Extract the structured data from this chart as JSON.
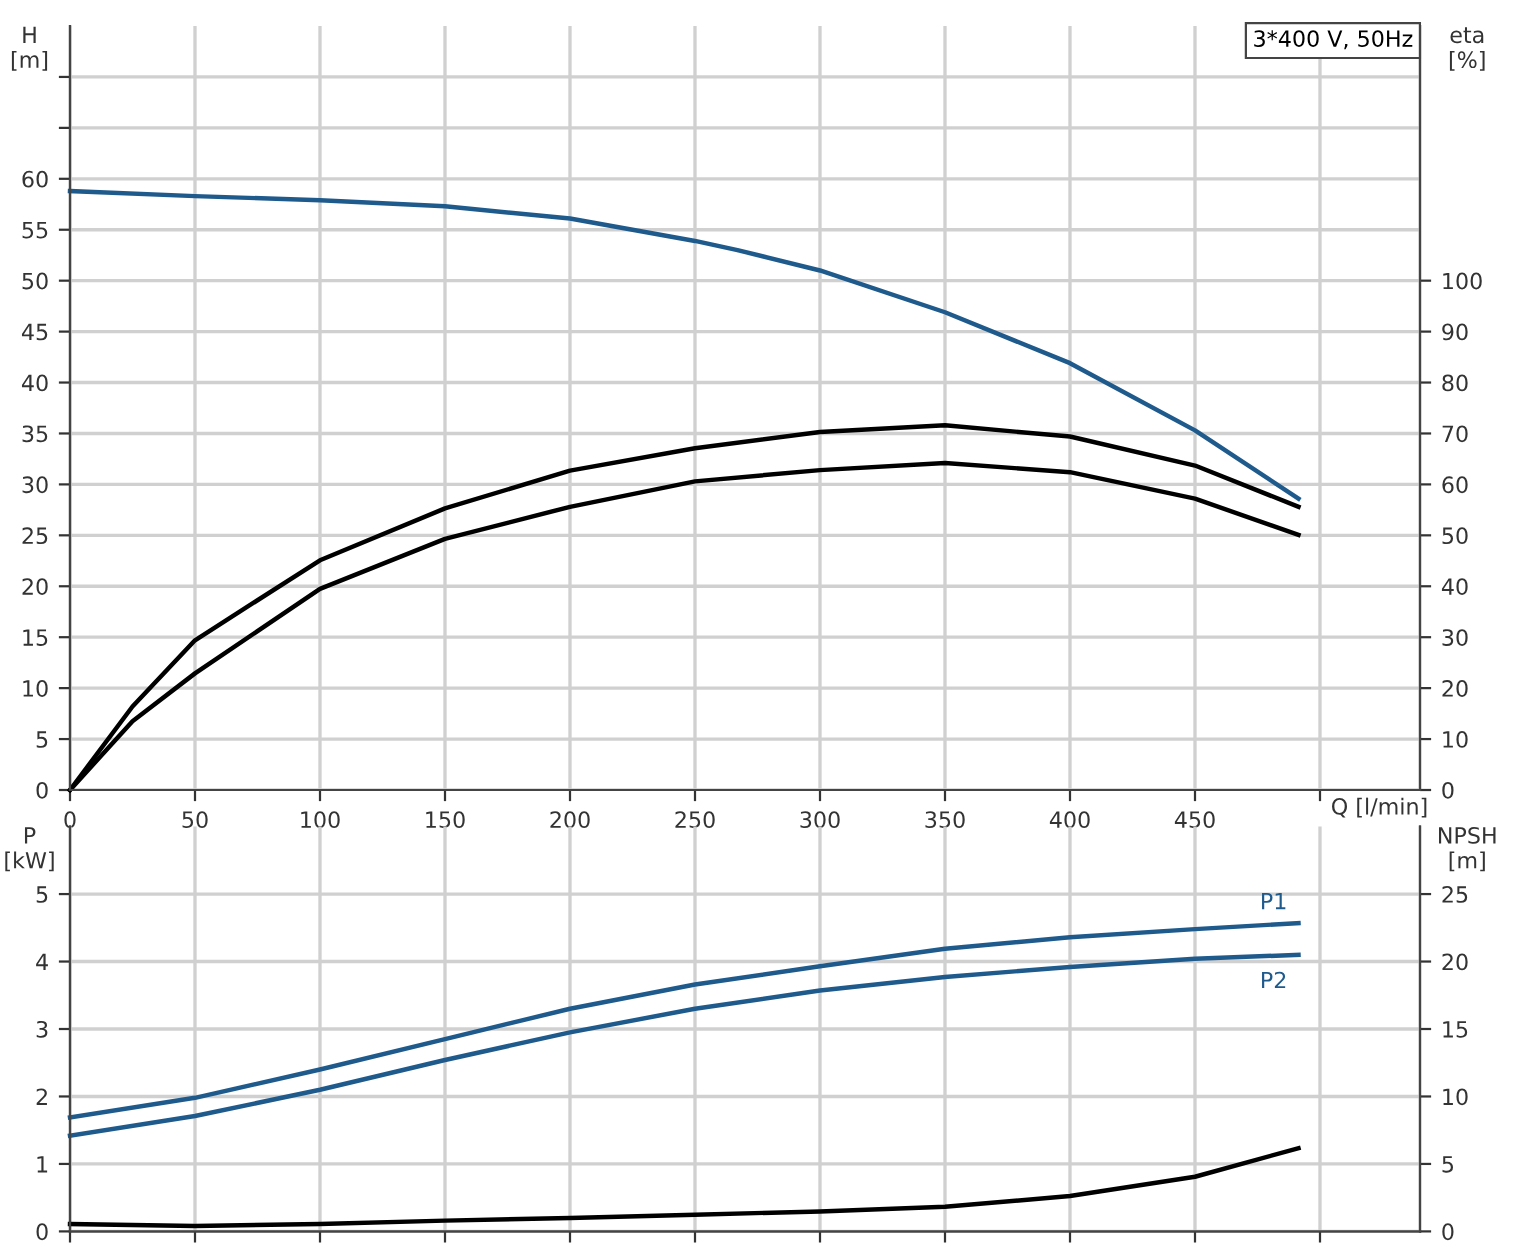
{
  "chart_data": [
    {
      "type": "line",
      "xlabel": "Q [l/min]",
      "ylabel": "H\n[m]",
      "y2label": "eta\n[%]",
      "annotations": [
        "3*400 V, 50Hz"
      ],
      "xlim": [
        0,
        540
      ],
      "xticks": [
        0,
        50,
        100,
        150,
        200,
        250,
        300,
        350,
        400,
        450,
        {
          "value": 500,
          "label": null
        }
      ],
      "ylim": [
        0,
        75
      ],
      "yticks": [
        0,
        5,
        10,
        15,
        20,
        25,
        30,
        35,
        40,
        45,
        50,
        55,
        60,
        {
          "value": 65,
          "label": null
        },
        {
          "value": 70,
          "label": null
        }
      ],
      "y2lim": [
        0,
        150
      ],
      "y2ticks": [
        0,
        10,
        20,
        30,
        40,
        50,
        60,
        70,
        80,
        90,
        100
      ],
      "grid": true,
      "legend": false,
      "marker": "none",
      "line_style": "solid",
      "series": [
        {
          "color": "#1f5a8c",
          "axis": "y",
          "x": [
            0,
            50,
            100,
            150,
            200,
            250,
            267,
            300,
            350,
            400,
            450,
            491.4
          ],
          "values": [
            58.8,
            58.3,
            57.9,
            57.3,
            56.1,
            53.9,
            53.0,
            51.0,
            46.9,
            41.9,
            35.3,
            28.6
          ]
        },
        {
          "color": "#000000",
          "axis": "y2",
          "x": [
            0,
            25,
            50,
            100,
            150,
            200,
            250,
            300,
            350,
            400,
            450,
            491.4
          ],
          "values": [
            0,
            16.4,
            29.4,
            45.1,
            55.3,
            62.7,
            67.1,
            70.3,
            71.6,
            69.4,
            63.7,
            55.6
          ]
        },
        {
          "color": "#000000",
          "axis": "y2",
          "x": [
            0,
            25,
            50,
            100,
            150,
            200,
            250,
            300,
            350,
            400,
            450,
            491.4
          ],
          "values": [
            0,
            13.5,
            22.9,
            39.5,
            49.3,
            55.6,
            60.6,
            62.8,
            64.2,
            62.4,
            57.2,
            50.1
          ]
        }
      ]
    },
    {
      "type": "line",
      "ylabel": "P\n[kW]",
      "y2label": "NPSH\n[m]",
      "tick_labels": "y",
      "xlim": [
        0,
        540
      ],
      "xticks": [
        0,
        50,
        100,
        150,
        200,
        250,
        300,
        350,
        400,
        450,
        500
      ],
      "ylim": [
        0,
        6
      ],
      "yticks": [
        0,
        1,
        2,
        3,
        4,
        5
      ],
      "y2lim": [
        0,
        30
      ],
      "y2ticks": [
        0,
        5,
        10,
        15,
        20,
        25
      ],
      "grid": true,
      "legend": false,
      "marker": "none",
      "line_style": "solid",
      "series": [
        {
          "name": "P1",
          "color": "#1f5a8c",
          "axis": "y",
          "x": [
            0,
            50,
            100,
            150,
            200,
            250,
            300,
            350,
            400,
            450,
            491.4
          ],
          "values": [
            1.69,
            1.98,
            2.4,
            2.85,
            3.3,
            3.66,
            3.93,
            4.19,
            4.36,
            4.48,
            4.57
          ]
        },
        {
          "name": "P2",
          "color": "#1f5a8c",
          "axis": "y",
          "x": [
            0,
            50,
            100,
            150,
            200,
            250,
            300,
            350,
            400,
            450,
            491.4
          ],
          "values": [
            1.42,
            1.71,
            2.1,
            2.54,
            2.95,
            3.3,
            3.57,
            3.77,
            3.92,
            4.04,
            4.1
          ]
        },
        {
          "color": "#000000",
          "axis": "y2",
          "x": [
            0,
            50,
            100,
            150,
            200,
            250,
            300,
            350,
            400,
            450,
            491.4
          ],
          "values": [
            0.55,
            0.4,
            0.55,
            0.8,
            0.99,
            1.24,
            1.48,
            1.83,
            2.62,
            4.05,
            6.17
          ]
        }
      ]
    }
  ]
}
